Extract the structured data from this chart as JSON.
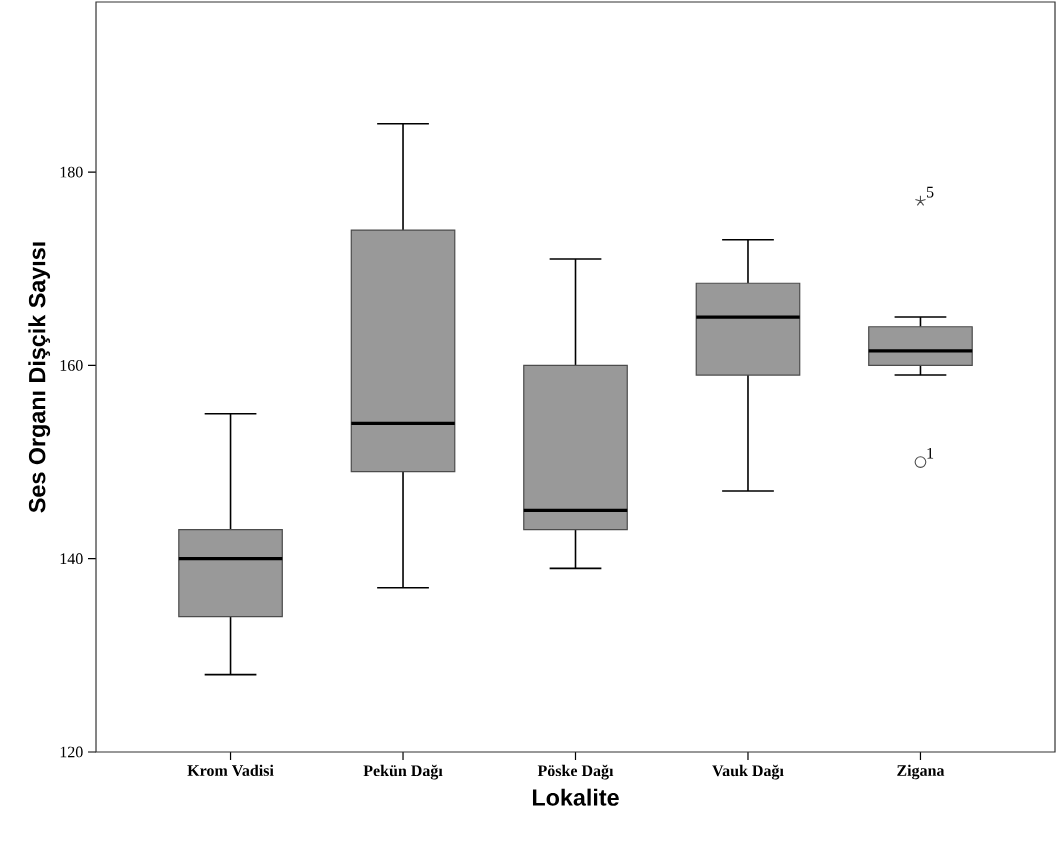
{
  "chart_data": {
    "type": "box",
    "xlabel": "Lokalite",
    "ylabel": "Ses Organı Dişçik Sayısı",
    "categories": [
      "Krom Vadisi",
      "Pekün Dağı",
      "Pöske Dağı",
      "Vauk Dağı",
      "Zigana"
    ],
    "ylim": [
      120,
      197.6
    ],
    "yticks": [
      120,
      140,
      160,
      180
    ],
    "grid": false,
    "series": [
      {
        "color": "#999999",
        "boxes": [
          {
            "low": 128,
            "q1": 134,
            "median": 140,
            "q3": 143,
            "high": 155
          },
          {
            "low": 137,
            "q1": 149,
            "median": 154,
            "q3": 174,
            "high": 185
          },
          {
            "low": 139,
            "q1": 143,
            "median": 145,
            "q3": 160,
            "high": 171
          },
          {
            "low": 147,
            "q1": 159,
            "median": 165,
            "q3": 168.5,
            "high": 173
          },
          {
            "low": 159,
            "q1": 160,
            "median": 161.5,
            "q3": 164,
            "high": 165,
            "outliers": [
              177,
              150
            ]
          }
        ]
      }
    ],
    "annotations": [
      "5",
      "1"
    ]
  }
}
